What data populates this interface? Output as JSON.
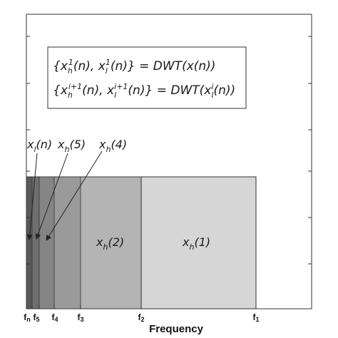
{
  "equations": [
    {
      "lbrace": "{",
      "var_a": "x",
      "sub_a": "h",
      "sup_a": "1",
      "arg_a": "(n), ",
      "var_b": "x",
      "sub_b": "l",
      "sup_b": "1",
      "arg_b": "(n)",
      "rbrace": "}",
      "equals": " = DWT(x(n))"
    },
    {
      "lbrace": "{",
      "var_a": "x",
      "sub_a": "h",
      "sup_a": "i+1",
      "arg_a": "(n), ",
      "var_b": "x",
      "sub_b": "l",
      "sup_b": "i+1",
      "arg_b": "(n)",
      "rbrace": "}",
      "equals": " = DWT(x",
      "tail_sub": "l",
      "tail_sup": "i",
      "tail": "(n))"
    }
  ],
  "bands": [
    {
      "label_var": "x",
      "label_sub": "h",
      "label_arg": "(1)",
      "color": "#d6d6d6"
    },
    {
      "label_var": "x",
      "label_sub": "h",
      "label_arg": "(2)",
      "color": "#b4b4b4"
    },
    {
      "color": "#9a9a9a"
    },
    {
      "color": "#858585"
    },
    {
      "color": "#6e6e6e"
    },
    {
      "color": "#5a5a5a"
    }
  ],
  "callouts": [
    {
      "label_var": "x",
      "label_sub": "l",
      "label_arg": "(n)"
    },
    {
      "label_var": "x",
      "label_sub": "h",
      "label_arg": "(5)"
    },
    {
      "label_var": "x",
      "label_sub": "h",
      "label_arg": "(4)"
    }
  ],
  "ticks": [
    {
      "main": "f",
      "sub": "1"
    },
    {
      "main": "f",
      "sub": "2"
    },
    {
      "main": "f",
      "sub": "3"
    },
    {
      "main": "f",
      "sub": "4"
    },
    {
      "main": "f",
      "sub": "5"
    },
    {
      "main": "f",
      "sub": "n"
    }
  ],
  "xlabel": "Frequency"
}
